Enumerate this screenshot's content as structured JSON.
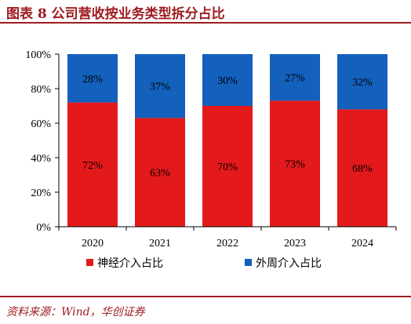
{
  "header": {
    "title": "图表 8   公司营收按业务类型拆分占比"
  },
  "footer": {
    "source": "资料来源：Wind，华创证券"
  },
  "colors": {
    "title": "#9e1c20",
    "series_1": "#e4191c",
    "series_2": "#1360bd",
    "axis": "#000000"
  },
  "chart_data": {
    "type": "bar",
    "stacked": true,
    "categories": [
      "2020",
      "2021",
      "2022",
      "2023",
      "2024"
    ],
    "series": [
      {
        "name": "神经介入占比",
        "values": [
          72,
          63,
          70,
          73,
          68
        ],
        "labels": [
          "72%",
          "63%",
          "70%",
          "73%",
          "68%"
        ]
      },
      {
        "name": "外周介入占比",
        "values": [
          28,
          37,
          30,
          27,
          32
        ],
        "labels": [
          "28%",
          "37%",
          "30%",
          "27%",
          "32%"
        ]
      }
    ],
    "ylim": [
      0,
      100
    ],
    "yticks": [
      "0%",
      "20%",
      "40%",
      "60%",
      "80%",
      "100%"
    ],
    "legend": "bottom",
    "grid": false
  }
}
